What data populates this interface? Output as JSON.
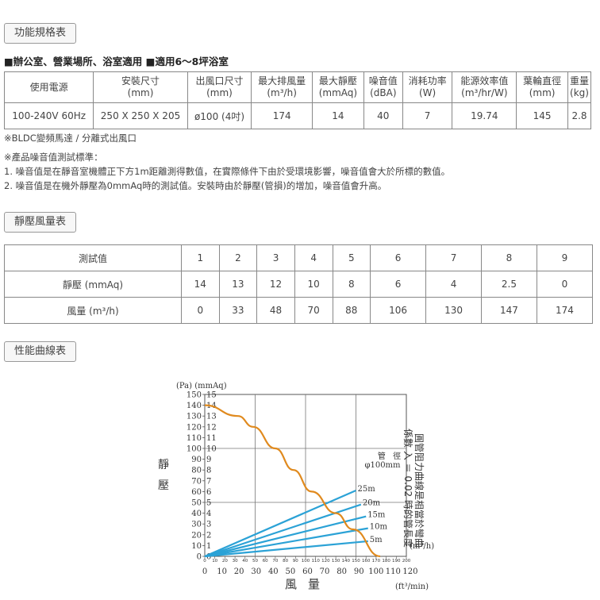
{
  "sections": {
    "spec": "功能規格表",
    "pressure": "靜壓風量表",
    "curve": "性能曲線表"
  },
  "subtitle": "■辦公室、營業場所、浴室適用 ■適用6～8坪浴室",
  "spec_table": {
    "headers": [
      [
        "使用電源",
        ""
      ],
      [
        "安裝尺寸",
        "(mm)"
      ],
      [
        "出風口尺寸",
        "(mm)"
      ],
      [
        "最大排風量",
        "(m³/h)"
      ],
      [
        "最大靜壓",
        "(mmAq)"
      ],
      [
        "噪音值",
        "(dBA)"
      ],
      [
        "消耗功率",
        "(W)"
      ],
      [
        "能源效率值",
        "(m³/hr/W)"
      ],
      [
        "葉輪直徑",
        "(mm)"
      ],
      [
        "重量",
        "(kg)"
      ]
    ],
    "values": [
      "100-240V 60Hz",
      "250 X 250 X 205",
      "ø100 (4吋)",
      "174",
      "14",
      "40",
      "7",
      "19.74",
      "145",
      "2.8"
    ]
  },
  "notes": {
    "motor": "※BLDC變頻馬達 / 分離式出風口",
    "noise_title": "※產品噪音值測試標準：",
    "noise_1": "1. 噪音值是在靜音室機體正下方1m距離測得數值，在實際條件下由於受環境影響，噪音值會大於所標的數值。",
    "noise_2": "2. 噪音值是在機外靜壓為0mmAq時的測試值。安裝時由於靜壓(管損)的增加，噪音值會升高。"
  },
  "pressure_table": {
    "rows": [
      {
        "label": "測試值",
        "values": [
          "1",
          "2",
          "3",
          "4",
          "5",
          "6",
          "7",
          "8",
          "9"
        ]
      },
      {
        "label": "靜壓 (mmAq)",
        "values": [
          "14",
          "13",
          "12",
          "10",
          "8",
          "6",
          "4",
          "2.5",
          "0"
        ]
      },
      {
        "label": "風量 (m³/h)",
        "values": [
          "0",
          "33",
          "48",
          "70",
          "88",
          "106",
          "130",
          "147",
          "174"
        ]
      }
    ]
  },
  "chart_data": {
    "type": "line",
    "title": "",
    "y_unit_top": "(Pa) (mmAq)",
    "ylabel": "靜壓",
    "xlabel": "風量",
    "x_unit_right_top": "(m³/h)",
    "x_unit_right_bottom": "(ft³/min)",
    "y_ticks_pa": [
      0,
      10,
      20,
      30,
      40,
      50,
      60,
      70,
      80,
      90,
      100,
      110,
      120,
      130,
      140,
      150
    ],
    "y_ticks_mmaq": [
      0,
      1,
      2,
      3,
      4,
      5,
      6,
      7,
      8,
      9,
      10,
      11,
      12,
      13,
      14,
      15
    ],
    "x_ticks_m3h": [
      0,
      10,
      20,
      30,
      40,
      50,
      60,
      70,
      80,
      90,
      100,
      110,
      120,
      130,
      140,
      150,
      160,
      170,
      180,
      190,
      200
    ],
    "x_ticks_cfm": [
      0,
      10,
      20,
      30,
      40,
      50,
      60,
      70,
      80,
      90,
      100,
      110,
      120
    ],
    "xlim_m3h": [
      0,
      200
    ],
    "ylim_mmaq": [
      0,
      15
    ],
    "grid": true,
    "performance_curve": {
      "color": "#e08a1e",
      "x_m3h": [
        0,
        33,
        48,
        70,
        88,
        106,
        130,
        147,
        174
      ],
      "y_mmaq": [
        14,
        13,
        12,
        10,
        8,
        6,
        4,
        2.5,
        0
      ]
    },
    "duct_label": [
      "管 徑",
      "φ100mm"
    ],
    "duct_curves": [
      {
        "name": "25m",
        "color": "#2ba2d6",
        "end_x_m3h": 150,
        "end_y_mmaq": 6.1
      },
      {
        "name": "20m",
        "color": "#2ba2d6",
        "end_x_m3h": 155,
        "end_y_mmaq": 4.8
      },
      {
        "name": "15m",
        "color": "#2ba2d6",
        "end_x_m3h": 160,
        "end_y_mmaq": 3.7
      },
      {
        "name": "10m",
        "color": "#2ba2d6",
        "end_x_m3h": 162,
        "end_y_mmaq": 2.6
      },
      {
        "name": "5m",
        "color": "#2ba2d6",
        "end_x_m3h": 162,
        "end_y_mmaq": 1.4
      }
    ],
    "side_note": [
      "圓管阻力曲線是相當於彎曲",
      "係數 入 ＝ 0.02 時的管長度"
    ]
  }
}
